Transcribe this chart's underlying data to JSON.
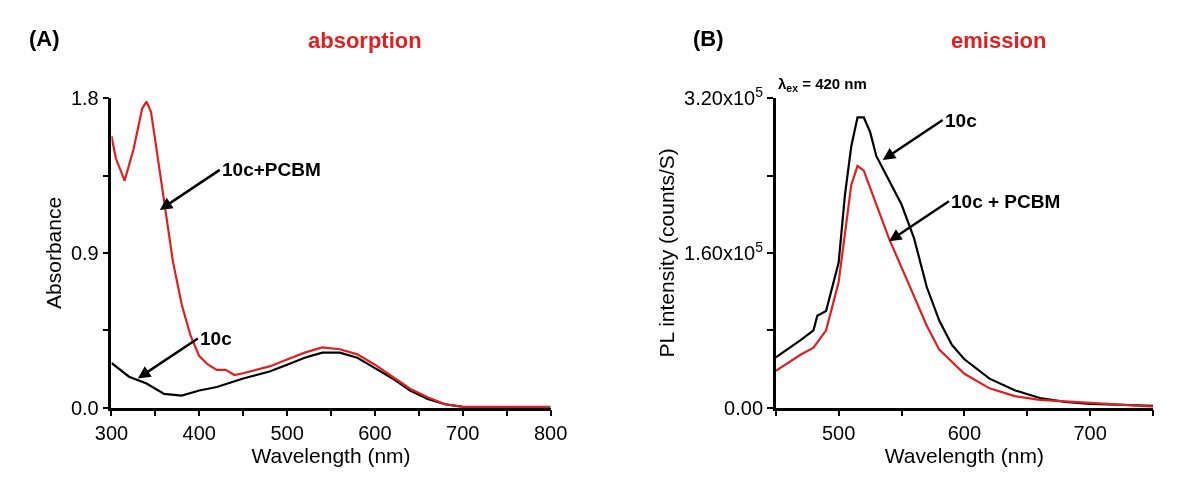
{
  "chart_data": [
    {
      "type": "line",
      "title": "absorption",
      "xlabel": "Wavelength (nm)",
      "ylabel": "Absorbance",
      "xlim": [
        300,
        800
      ],
      "ylim": [
        0,
        1.8
      ],
      "xticks": [
        300,
        {
          "value": 350,
          "label": null
        },
        400,
        {
          "value": 450,
          "label": null
        },
        500,
        {
          "value": 550,
          "label": null
        },
        600,
        {
          "value": 650,
          "label": null
        },
        700,
        {
          "value": 750,
          "label": null
        },
        800
      ],
      "yticks": [
        {
          "value": 0,
          "label": "0.0"
        },
        {
          "value": 0.45,
          "label": null
        },
        0.9,
        {
          "value": 1.35,
          "label": null
        },
        1.8
      ],
      "marker": "none",
      "line_style": "solid",
      "annotations": [
        "(A)",
        {
          "text": "10c+PCBM",
          "x": 355,
          "y": 1.15
        },
        {
          "text": "10c",
          "x": 330,
          "y": 0.17
        }
      ],
      "series": [
        {
          "color": "#000000",
          "x": [
            300,
            320,
            340,
            360,
            380,
            400,
            420,
            450,
            480,
            500,
            520,
            540,
            560,
            580,
            600,
            620,
            640,
            660,
            680,
            700,
            750,
            800
          ],
          "values": [
            0.26,
            0.18,
            0.14,
            0.08,
            0.07,
            0.1,
            0.12,
            0.17,
            0.21,
            0.25,
            0.29,
            0.32,
            0.32,
            0.29,
            0.23,
            0.17,
            0.1,
            0.05,
            0.02,
            0.005,
            0.0,
            0.0
          ]
        },
        {
          "color": "#e02020",
          "x": [
            300,
            305,
            315,
            325,
            335,
            340,
            345,
            350,
            360,
            370,
            380,
            390,
            400,
            410,
            420,
            430,
            440,
            450,
            480,
            500,
            520,
            540,
            560,
            580,
            600,
            620,
            640,
            660,
            680,
            700,
            750,
            800
          ],
          "values": [
            1.58,
            1.45,
            1.32,
            1.5,
            1.74,
            1.78,
            1.72,
            1.55,
            1.2,
            0.85,
            0.6,
            0.42,
            0.3,
            0.25,
            0.22,
            0.22,
            0.19,
            0.2,
            0.24,
            0.28,
            0.32,
            0.35,
            0.34,
            0.31,
            0.25,
            0.18,
            0.11,
            0.06,
            0.02,
            0.005,
            0.005,
            0.005
          ]
        }
      ]
    },
    {
      "type": "line",
      "title": "emission",
      "xlabel": "Wavelength (nm)",
      "ylabel": "PL intensity (counts/S)",
      "xlim": [
        450,
        750
      ],
      "ylim": [
        0,
        320000
      ],
      "xticks": [
        {
          "value": 450,
          "label": null
        },
        500,
        {
          "value": 550,
          "label": null
        },
        600,
        {
          "value": 650,
          "label": null
        },
        700,
        {
          "value": 750,
          "label": null
        }
      ],
      "yticks": [
        {
          "value": 0,
          "label": "0.00"
        },
        {
          "value": 80000,
          "label": null
        },
        {
          "value": 160000,
          "label": "1.60x10$^{5}$"
        },
        {
          "value": 240000,
          "label": null
        },
        {
          "value": 320000,
          "label": "3.20x10$^{5}$"
        }
      ],
      "marker": "none",
      "line_style": "solid",
      "annotations": [
        "(B)",
        "λ$_{ex}$ = 420 nm",
        {
          "text": "10c",
          "x": 535,
          "y": 256000
        },
        {
          "text": "10c + PCBM",
          "x": 540,
          "y": 172000
        }
      ],
      "series": [
        {
          "color": "#000000",
          "x": [
            450,
            470,
            480,
            483,
            490,
            500,
            505,
            510,
            515,
            520,
            525,
            530,
            540,
            550,
            560,
            570,
            580,
            590,
            600,
            620,
            640,
            660,
            680,
            700,
            750
          ],
          "values": [
            52000,
            70000,
            80000,
            95000,
            100000,
            150000,
            220000,
            270000,
            300000,
            300000,
            285000,
            260000,
            235000,
            210000,
            175000,
            125000,
            90000,
            65000,
            50000,
            30000,
            18000,
            10000,
            6000,
            4000,
            2000
          ]
        },
        {
          "color": "#e02020",
          "x": [
            450,
            470,
            480,
            490,
            500,
            505,
            510,
            515,
            520,
            530,
            540,
            550,
            560,
            570,
            580,
            600,
            620,
            640,
            660,
            700,
            750
          ],
          "values": [
            38000,
            55000,
            62000,
            80000,
            130000,
            180000,
            230000,
            250000,
            245000,
            210000,
            175000,
            145000,
            115000,
            85000,
            60000,
            35000,
            20000,
            12000,
            8000,
            5000,
            1000
          ]
        }
      ]
    }
  ]
}
